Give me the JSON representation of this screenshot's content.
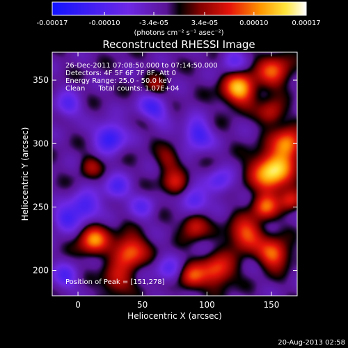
{
  "chart_data": {
    "type": "heatmap",
    "title": "Reconstructed RHESSI Image",
    "xlabel": "Heliocentric X (arcsec)",
    "ylabel": "Heliocentric Y (arcsec)",
    "xlim": [
      -20,
      170
    ],
    "ylim": [
      180,
      372
    ],
    "xticks": [
      0,
      50,
      100,
      150
    ],
    "yticks": [
      200,
      250,
      300,
      350
    ],
    "colorbar": {
      "min": -0.00017,
      "max": 0.00017,
      "ticks": [
        {
          "value": -0.00017,
          "label": "-0.00017"
        },
        {
          "value": -0.0001,
          "label": "-0.00010"
        },
        {
          "value": -3.4e-05,
          "label": "-3.4e-05"
        },
        {
          "value": 3.4e-05,
          "label": "3.4e-05"
        },
        {
          "value": 0.0001,
          "label": "0.00010"
        },
        {
          "value": 0.00017,
          "label": "0.00017"
        }
      ],
      "units_label": "(photons cm⁻² s⁻¹ asec⁻²)"
    },
    "annotations": [
      "26-Dec-2011 07:08:50.000 to 07:14:50.000",
      "Detectors: 4F 5F 6F 7F 8F, Att 0",
      "Energy Range: 25.0 - 50.0 keV",
      "Clean      Total counts: 1.07E+04"
    ],
    "peak_label": "Position of Peak = [151,278]",
    "peak": [
      151,
      278
    ],
    "sources": [
      {
        "x": 151,
        "y": 278,
        "amp": 1.0,
        "sigma": 11
      },
      {
        "x": 163,
        "y": 300,
        "amp": 0.75,
        "sigma": 8
      },
      {
        "x": 130,
        "y": 228,
        "amp": 0.65,
        "sigma": 9
      },
      {
        "x": 152,
        "y": 213,
        "amp": 0.7,
        "sigma": 8
      },
      {
        "x": 108,
        "y": 200,
        "amp": 0.62,
        "sigma": 9
      },
      {
        "x": 88,
        "y": 195,
        "amp": 0.55,
        "sigma": 7
      },
      {
        "x": 12,
        "y": 224,
        "amp": 0.72,
        "sigma": 8
      },
      {
        "x": 40,
        "y": 215,
        "amp": 0.7,
        "sigma": 9
      },
      {
        "x": 30,
        "y": 192,
        "amp": 0.45,
        "sigma": 8
      },
      {
        "x": 125,
        "y": 343,
        "amp": 0.85,
        "sigma": 9
      },
      {
        "x": 152,
        "y": 357,
        "amp": 0.6,
        "sigma": 9
      },
      {
        "x": 150,
        "y": 324,
        "amp": 0.45,
        "sigma": 7
      },
      {
        "x": 90,
        "y": 235,
        "amp": 0.5,
        "sigma": 7
      },
      {
        "x": 145,
        "y": 250,
        "amp": 0.6,
        "sigma": 7
      },
      {
        "x": 75,
        "y": 268,
        "amp": 0.45,
        "sigma": 7
      },
      {
        "x": 55,
        "y": 320,
        "amp": 0.4,
        "sigma": 7
      },
      {
        "x": 100,
        "y": 310,
        "amp": 0.35,
        "sigma": 7
      },
      {
        "x": 10,
        "y": 282,
        "amp": 0.3,
        "sigma": 6
      },
      {
        "x": 60,
        "y": 345,
        "amp": 0.3,
        "sigma": 6
      },
      {
        "x": 70,
        "y": 288,
        "amp": 0.3,
        "sigma": 7
      },
      {
        "x": 165,
        "y": 255,
        "amp": 0.45,
        "sigma": 6
      },
      {
        "x": 25,
        "y": 305,
        "amp": -0.7,
        "sigma": 8
      },
      {
        "x": 57,
        "y": 325,
        "amp": -0.8,
        "sigma": 8
      },
      {
        "x": 95,
        "y": 308,
        "amp": -0.85,
        "sigma": 8
      },
      {
        "x": 5,
        "y": 250,
        "amp": -0.6,
        "sigma": 8
      },
      {
        "x": -10,
        "y": 240,
        "amp": -0.5,
        "sigma": 7
      },
      {
        "x": -8,
        "y": 330,
        "amp": -0.45,
        "sigma": 7
      },
      {
        "x": 90,
        "y": 255,
        "amp": -0.55,
        "sigma": 7
      },
      {
        "x": 30,
        "y": 265,
        "amp": -0.5,
        "sigma": 7
      },
      {
        "x": 50,
        "y": 250,
        "amp": -0.35,
        "sigma": 7
      },
      {
        "x": 110,
        "y": 270,
        "amp": -0.45,
        "sigma": 7
      },
      {
        "x": 120,
        "y": 365,
        "amp": -0.35,
        "sigma": 7
      },
      {
        "x": 70,
        "y": 200,
        "amp": -0.4,
        "sigma": 7
      },
      {
        "x": -10,
        "y": 195,
        "amp": -0.45,
        "sigma": 7
      }
    ]
  },
  "footer": {
    "timestamp": "20-Aug-2013 02:58"
  }
}
